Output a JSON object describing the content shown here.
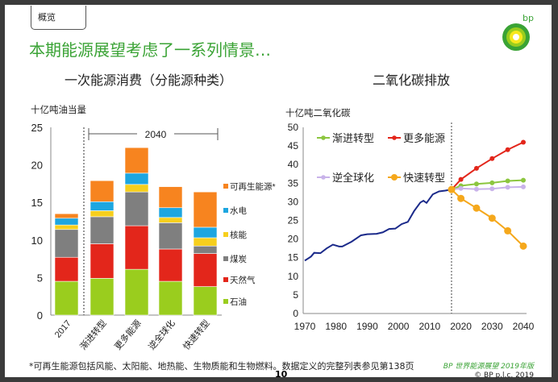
{
  "tag": "概览",
  "title": "本期能源展望考虑了一系列情景…",
  "logo_text": "bp",
  "footnote": "*可再生能源包括风能、太阳能、地热能、生物质能和生物燃料。数据定义的完整列表参见第138页",
  "page_number": "10",
  "publication": "BP 世界能源展望 2019年版",
  "copyright": "© BP p.l.c. 2019",
  "chart_data": [
    {
      "type": "bar",
      "stacked": true,
      "title": "一次能源消费（分能源种类）",
      "ylabel": "十亿吨油当量",
      "ylim": [
        0,
        25
      ],
      "yticks": [
        0,
        5,
        10,
        15,
        20,
        25
      ],
      "bracket_label": "2040",
      "categories": [
        "2017",
        "渐进转型",
        "更多能源",
        "逆全球化",
        "快速转型"
      ],
      "legend_position": "right",
      "series": [
        {
          "name": "石油",
          "color": "#9acd1e",
          "values": [
            4.5,
            4.9,
            6.1,
            4.5,
            3.8
          ]
        },
        {
          "name": "天然气",
          "color": "#e3261b",
          "values": [
            3.2,
            4.6,
            5.8,
            4.3,
            4.4
          ]
        },
        {
          "name": "煤炭",
          "color": "#7f7f7f",
          "values": [
            3.7,
            3.6,
            4.5,
            3.5,
            1.0
          ]
        },
        {
          "name": "核能",
          "color": "#f7cf1d",
          "values": [
            0.6,
            0.8,
            1.0,
            0.7,
            1.1
          ]
        },
        {
          "name": "水电",
          "color": "#1da6e0",
          "values": [
            0.9,
            1.2,
            1.5,
            1.3,
            1.4
          ]
        },
        {
          "name": "可再生能源*",
          "color": "#f7841f",
          "values": [
            0.6,
            2.8,
            3.4,
            2.8,
            4.7
          ]
        }
      ]
    },
    {
      "type": "line",
      "title": "二氧化碳排放",
      "ylabel": "十亿吨二氧化碳",
      "xlim": [
        1970,
        2040
      ],
      "ylim": [
        0,
        50
      ],
      "xticks": [
        1970,
        1980,
        1990,
        2000,
        2010,
        2020,
        2030,
        2040
      ],
      "yticks": [
        0,
        5,
        10,
        15,
        20,
        25,
        30,
        35,
        40,
        45,
        50
      ],
      "divider_x": 2017,
      "legend_position": "top-left",
      "history": {
        "color": "#1b2a8a",
        "x": [
          1970,
          1972,
          1973,
          1975,
          1977,
          1979,
          1981,
          1982,
          1985,
          1988,
          1990,
          1993,
          1995,
          1997,
          1999,
          2001,
          2003,
          2005,
          2007,
          2008,
          2009,
          2011,
          2013,
          2015,
          2017
        ],
        "y": [
          14.2,
          15.3,
          16.3,
          16.2,
          17.5,
          18.5,
          18.0,
          18.0,
          19.3,
          21.0,
          21.3,
          21.4,
          21.8,
          22.7,
          22.8,
          24.0,
          24.6,
          27.5,
          29.8,
          30.3,
          29.7,
          32.0,
          32.8,
          33.0,
          33.3
        ]
      },
      "x": [
        2017,
        2020,
        2025,
        2030,
        2035,
        2040
      ],
      "series": [
        {
          "name": "渐进转型",
          "color": "#8cc63f",
          "values": [
            33.3,
            34.3,
            34.8,
            35.1,
            35.6,
            35.8
          ]
        },
        {
          "name": "更多能源",
          "color": "#e3261b",
          "values": [
            33.3,
            36.0,
            39.0,
            41.6,
            44.0,
            46.0
          ]
        },
        {
          "name": "逆全球化",
          "color": "#c9b3ea",
          "values": [
            33.3,
            33.6,
            33.4,
            33.5,
            33.9,
            34.0
          ]
        },
        {
          "name": "快速转型",
          "color": "#f5a81c",
          "values": [
            33.3,
            30.9,
            28.3,
            25.6,
            22.2,
            18.1
          ]
        }
      ]
    }
  ]
}
